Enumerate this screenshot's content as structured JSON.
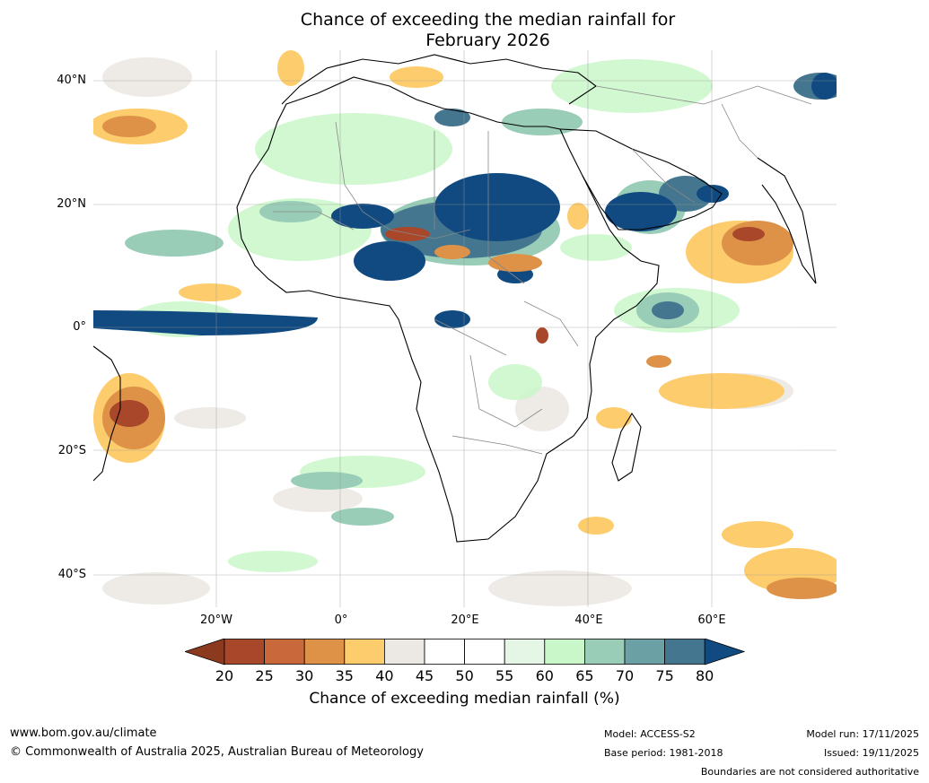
{
  "title": {
    "line1": "Chance of exceeding the median rainfall for",
    "line2": "February 2026"
  },
  "map": {
    "lat_ticks": [
      "40°N",
      "20°N",
      "0°",
      "20°S",
      "40°S"
    ],
    "lon_ticks": [
      "20°W",
      "0°",
      "20°E",
      "40°E",
      "60°E"
    ]
  },
  "colorbar": {
    "title": "Chance of exceeding median rainfall (%)",
    "labels": [
      "20",
      "25",
      "30",
      "35",
      "40",
      "45",
      "50",
      "55",
      "60",
      "65",
      "70",
      "75",
      "80"
    ],
    "colors": [
      "#8c3a1f",
      "#a9472a",
      "#c9683a",
      "#de9248",
      "#fdcc6c",
      "#ece9e4",
      "#ffffff",
      "#ffffff",
      "#e5f5e6",
      "#c9f7c9",
      "#99cdb7",
      "#6ba1a4",
      "#44768f",
      "#114a80"
    ]
  },
  "footer": {
    "url": "www.bom.gov.au/climate",
    "copyright": "© Commonwealth of Australia 2025, Australian Bureau of Meteorology",
    "model": "Model: ACCESS-S2",
    "base_period": "Base period: 1981-2018",
    "model_run": "Model run: 17/11/2025",
    "issued": "Issued: 19/11/2025",
    "disclaimer": "Boundaries are not considered authoritative"
  }
}
